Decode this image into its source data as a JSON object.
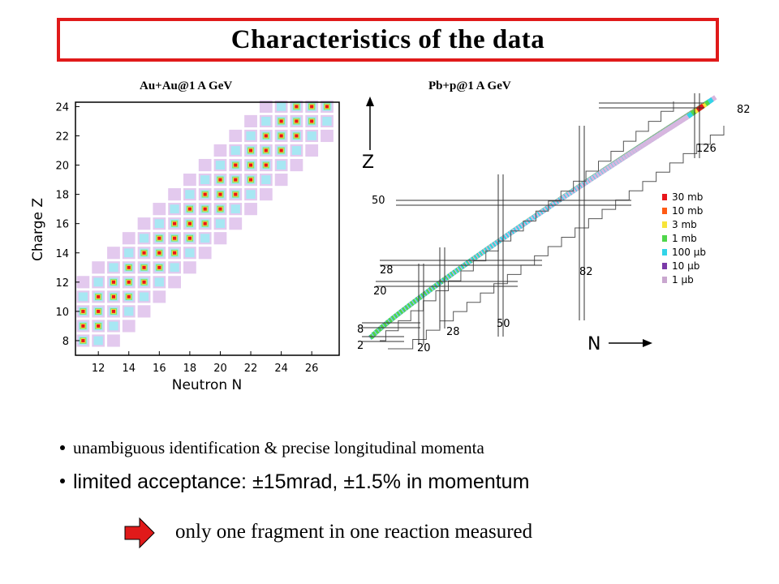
{
  "slide": {
    "title": "Characteristics of the data",
    "caption_left": "Au+Au@1 A GeV",
    "caption_right": "Pb+p@1 A GeV",
    "bullets": [
      "unambiguous identification & precise longitudinal momenta",
      "limited acceptance: ±15mrad, ±1.5% in momentum"
    ],
    "conclusion": "only one fragment in one reaction measured",
    "colors": {
      "title_border": "#e01a1a",
      "arrow": "#e01a1a"
    },
    "icons": [
      "right-arrow-icon",
      "bullet-dot-icon"
    ]
  },
  "chart_data": [
    {
      "type": "heatmap",
      "title": "",
      "xlabel": "Neutron N",
      "ylabel": "Charge Z",
      "xlim": [
        10.5,
        27.8
      ],
      "ylim": [
        7,
        24.3
      ],
      "xticks": [
        "12",
        "14",
        "16",
        "18",
        "20",
        "22",
        "24",
        "26"
      ],
      "yticks": [
        "8",
        "10",
        "12",
        "14",
        "16",
        "18",
        "20",
        "22",
        "24"
      ],
      "band": {
        "n_minus_z_min": -1,
        "n_minus_z_max": 5
      }
    },
    {
      "type": "heatmap",
      "title": "",
      "xlabel": "N",
      "ylabel": "Z",
      "shell_numbers": [
        "82",
        "126",
        "50",
        "28",
        "20",
        "8",
        "2",
        "28",
        "50",
        "82",
        "20"
      ],
      "legend": [
        "30 mb",
        "10 mb",
        "3 mb",
        "1 mb",
        "100 µb",
        "10 µb",
        "1 µb"
      ],
      "legend_colors": [
        "#e8151b",
        "#ff5a14",
        "#f7e43a",
        "#4fd64a",
        "#32d4e8",
        "#7a3aa8",
        "#c9a7cf"
      ],
      "legend_position": "right"
    }
  ]
}
